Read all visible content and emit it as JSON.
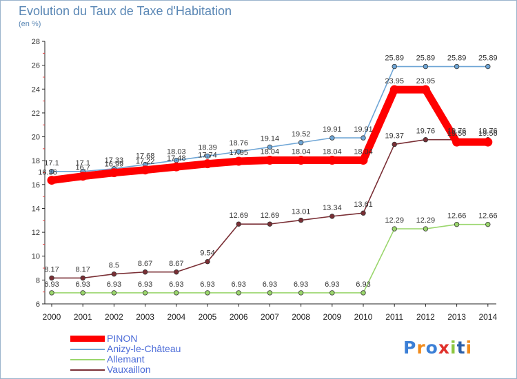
{
  "title": "Evolution du Taux de Taxe d'Habitation",
  "subtitle": "(en %)",
  "logo": {
    "letters": [
      "P",
      "r",
      "o",
      "x",
      "i",
      "t",
      "i"
    ],
    "colors": [
      "#3b7fd6",
      "#f08a1c",
      "#3b7fd6",
      "#e0302a",
      "#8dc63f",
      "#2c5fa8",
      "#f08a1c"
    ]
  },
  "chart_data": {
    "type": "line",
    "x": [
      2000,
      2001,
      2002,
      2003,
      2004,
      2005,
      2006,
      2007,
      2008,
      2009,
      2010,
      2011,
      2012,
      2013,
      2014
    ],
    "x_labels": [
      "2000",
      "2001",
      "2002",
      "2003",
      "2004",
      "2005",
      "2006",
      "2007",
      "2008",
      "2009",
      "2010",
      "2011",
      "2012",
      "2013",
      "2014"
    ],
    "ylim": [
      6,
      28
    ],
    "yticks": [
      6,
      8,
      10,
      12,
      14,
      16,
      18,
      20,
      22,
      24,
      26,
      28
    ],
    "ytick_labels": [
      "6",
      "8",
      "10",
      "12",
      "14",
      "16",
      "18",
      "20",
      "22",
      "24",
      "26",
      "28"
    ],
    "grid": false,
    "legend_position": "bottom-left",
    "series": [
      {
        "name": "PINON",
        "color": "#ff0000",
        "values": [
          16.36,
          16.7,
          16.99,
          17.22,
          17.48,
          17.74,
          17.95,
          18.04,
          18.04,
          18.04,
          18.04,
          23.95,
          23.95,
          19.56,
          19.56
        ],
        "labels": [
          "16.36",
          "16.7",
          "16.99",
          "17.22",
          "17.48",
          "17.74",
          "17.95",
          "18.04",
          "18.04",
          "18.04",
          "18.04",
          "23.95",
          "23.95",
          "19.56",
          "19.56"
        ]
      },
      {
        "name": "Anizy-le-Château",
        "color": "#6fa6d6",
        "values": [
          17.1,
          17.1,
          17.33,
          17.68,
          18.03,
          18.39,
          18.76,
          19.14,
          19.52,
          19.91,
          19.91,
          25.89,
          25.89,
          25.89,
          25.89
        ],
        "labels": [
          "17.1",
          "17.1",
          "17.33",
          "17.68",
          "18.03",
          "18.39",
          "18.76",
          "19.14",
          "19.52",
          "19.91",
          "19.91",
          "25.89",
          "25.89",
          "25.89",
          "25.89"
        ]
      },
      {
        "name": "Allemant",
        "color": "#9ad66c",
        "values": [
          6.93,
          6.93,
          6.93,
          6.93,
          6.93,
          6.93,
          6.93,
          6.93,
          6.93,
          6.93,
          6.93,
          12.29,
          12.29,
          12.66,
          12.66
        ],
        "labels": [
          "6.93",
          "6.93",
          "6.93",
          "6.93",
          "6.93",
          "6.93",
          "6.93",
          "6.93",
          "6.93",
          "6.93",
          "6.93",
          "12.29",
          "12.29",
          "12.66",
          "12.66"
        ]
      },
      {
        "name": "Vauxaillon",
        "color": "#7a2f35",
        "values": [
          8.17,
          8.17,
          8.5,
          8.67,
          8.67,
          9.54,
          12.69,
          12.69,
          13.01,
          13.34,
          13.61,
          19.37,
          19.76,
          19.76,
          19.76
        ],
        "labels": [
          "8.17",
          "8.17",
          "8.5",
          "8.67",
          "8.67",
          "9.54",
          "12.69",
          "12.69",
          "13.01",
          "13.34",
          "13.61",
          "19.37",
          "19.76",
          "19.76",
          "19.76"
        ]
      }
    ]
  }
}
